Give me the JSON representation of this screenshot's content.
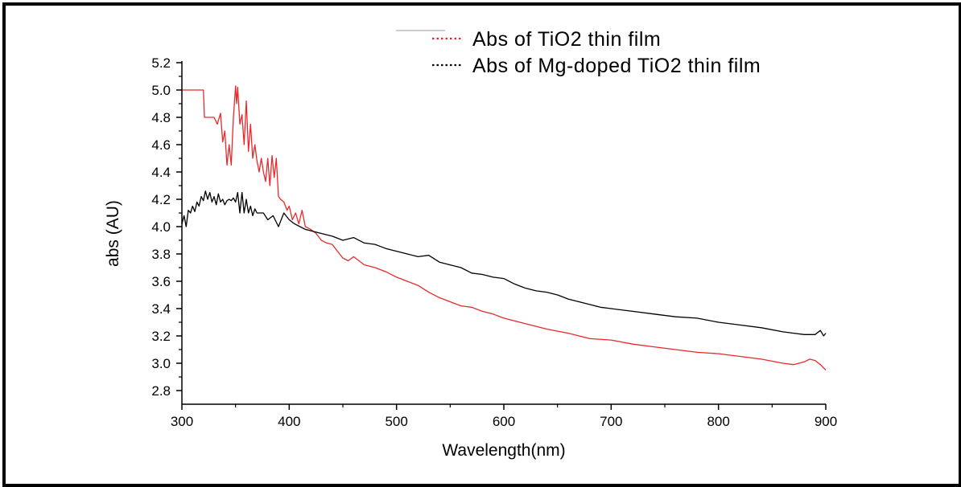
{
  "chart_data": {
    "type": "line",
    "xlabel": "Wavelength(nm)",
    "ylabel": "abs (AU)",
    "xlim": [
      300,
      900
    ],
    "ylim": [
      2.7,
      5.2
    ],
    "xticks": [
      300,
      400,
      500,
      600,
      700,
      800,
      900
    ],
    "yticks": [
      2.8,
      3.0,
      3.2,
      3.4,
      3.6,
      3.8,
      4.0,
      4.2,
      4.4,
      4.6,
      4.8,
      5.0,
      5.2
    ],
    "grid": false,
    "legend_position": "top-right",
    "series": [
      {
        "name": "Abs of TiO2 thin film",
        "color": "#e8292b",
        "x": [
          300,
          320,
          321,
          325,
          330,
          333,
          336,
          338,
          340,
          342,
          344,
          346,
          348,
          350,
          351,
          352,
          354,
          356,
          358,
          360,
          362,
          364,
          366,
          368,
          370,
          372,
          374,
          376,
          378,
          380,
          382,
          384,
          386,
          388,
          390,
          392,
          395,
          398,
          400,
          403,
          406,
          409,
          412,
          415,
          420,
          425,
          430,
          435,
          440,
          445,
          450,
          455,
          460,
          470,
          480,
          490,
          500,
          510,
          520,
          530,
          540,
          550,
          560,
          570,
          580,
          590,
          600,
          620,
          640,
          660,
          680,
          700,
          720,
          740,
          760,
          780,
          800,
          820,
          840,
          860,
          870,
          880,
          885,
          890,
          895,
          900
        ],
        "y": [
          5.0,
          5.0,
          4.8,
          4.8,
          4.8,
          4.75,
          4.83,
          4.62,
          4.7,
          4.45,
          4.6,
          4.45,
          4.8,
          5.03,
          4.9,
          5.02,
          4.75,
          4.82,
          4.6,
          4.92,
          4.55,
          4.75,
          4.5,
          4.6,
          4.48,
          4.4,
          4.5,
          4.4,
          4.33,
          4.5,
          4.3,
          4.52,
          4.36,
          4.5,
          4.22,
          4.2,
          4.18,
          4.12,
          4.15,
          4.05,
          4.1,
          4.02,
          4.12,
          4.0,
          3.98,
          3.95,
          3.9,
          3.88,
          3.87,
          3.82,
          3.77,
          3.75,
          3.78,
          3.72,
          3.7,
          3.67,
          3.63,
          3.6,
          3.57,
          3.52,
          3.48,
          3.45,
          3.42,
          3.41,
          3.38,
          3.36,
          3.33,
          3.29,
          3.25,
          3.22,
          3.18,
          3.17,
          3.14,
          3.12,
          3.1,
          3.08,
          3.07,
          3.05,
          3.03,
          3.0,
          2.99,
          3.01,
          3.03,
          3.02,
          2.99,
          2.95
        ]
      },
      {
        "name": "Abs of Mg-doped TiO2 thin film",
        "color": "#000000",
        "x": [
          300,
          302,
          304,
          306,
          308,
          310,
          312,
          314,
          316,
          318,
          320,
          322,
          324,
          326,
          328,
          330,
          332,
          334,
          336,
          338,
          340,
          342,
          344,
          346,
          348,
          350,
          352,
          354,
          356,
          358,
          360,
          362,
          364,
          366,
          368,
          370,
          372,
          374,
          376,
          380,
          385,
          390,
          395,
          400,
          405,
          410,
          415,
          420,
          430,
          440,
          450,
          460,
          470,
          480,
          490,
          500,
          510,
          520,
          530,
          540,
          550,
          560,
          570,
          580,
          590,
          600,
          610,
          620,
          630,
          640,
          650,
          660,
          670,
          680,
          690,
          700,
          720,
          740,
          760,
          780,
          800,
          820,
          840,
          860,
          870,
          880,
          890,
          895,
          898,
          900
        ],
        "y": [
          4.02,
          4.08,
          4.0,
          4.12,
          4.1,
          4.15,
          4.11,
          4.18,
          4.15,
          4.22,
          4.19,
          4.26,
          4.2,
          4.25,
          4.18,
          4.22,
          4.16,
          4.24,
          4.18,
          4.2,
          4.16,
          4.19,
          4.2,
          4.19,
          4.21,
          4.18,
          4.25,
          4.1,
          4.25,
          4.1,
          4.2,
          4.1,
          4.15,
          4.08,
          4.13,
          4.1,
          4.1,
          4.1,
          4.1,
          4.05,
          4.08,
          4.0,
          4.1,
          4.05,
          4.02,
          4.0,
          3.98,
          3.97,
          3.95,
          3.93,
          3.9,
          3.92,
          3.88,
          3.87,
          3.84,
          3.82,
          3.8,
          3.78,
          3.79,
          3.74,
          3.72,
          3.7,
          3.66,
          3.65,
          3.63,
          3.62,
          3.58,
          3.55,
          3.53,
          3.52,
          3.5,
          3.47,
          3.45,
          3.43,
          3.41,
          3.4,
          3.38,
          3.36,
          3.34,
          3.33,
          3.3,
          3.28,
          3.26,
          3.23,
          3.22,
          3.21,
          3.21,
          3.24,
          3.2,
          3.22
        ]
      }
    ]
  }
}
